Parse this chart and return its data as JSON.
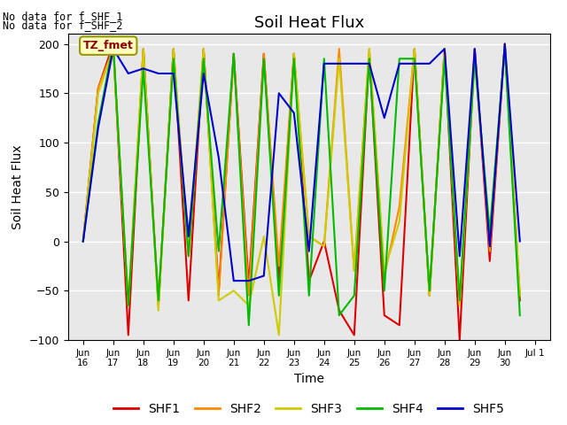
{
  "title": "Soil Heat Flux",
  "xlabel": "Time",
  "ylabel": "Soil Heat Flux",
  "ylim": [
    -100,
    210
  ],
  "yticks": [
    -100,
    -50,
    0,
    50,
    100,
    150,
    200
  ],
  "background_color": "#e8e8e8",
  "figure_color": "#ffffff",
  "annotation_text1": "No data for f_SHF_1",
  "annotation_text2": "No data for f_SHF_2",
  "tz_label": "TZ_fmet",
  "series_names": [
    "SHF1",
    "SHF2",
    "SHF3",
    "SHF4",
    "SHF5"
  ],
  "series_colors": [
    "#dd0000",
    "#ff8800",
    "#cccc00",
    "#00bb00",
    "#0000cc"
  ],
  "start_day": 16,
  "end_day": 31,
  "n_days": 15,
  "SHF1_times": [
    16.0,
    16.5,
    17.0,
    17.5,
    18.0,
    18.5,
    19.0,
    19.5,
    20.0,
    20.5,
    21.0,
    21.5,
    22.0,
    22.5,
    23.0,
    23.5,
    24.0,
    24.5,
    25.0,
    25.5,
    26.0,
    26.5,
    27.0,
    27.5,
    28.0,
    28.5,
    29.0,
    29.5,
    30.0,
    30.5
  ],
  "SHF1_vals": [
    0,
    155,
    200,
    -95,
    195,
    -65,
    195,
    -60,
    195,
    -50,
    190,
    -45,
    190,
    -40,
    190,
    -40,
    0,
    -70,
    -95,
    190,
    -75,
    -85,
    195,
    -55,
    195,
    -100,
    195,
    -20,
    200,
    -60
  ],
  "SHF2_times": [
    16.0,
    16.5,
    17.0,
    17.5,
    18.0,
    18.5,
    19.0,
    19.5,
    20.0,
    20.5,
    21.0,
    21.5,
    22.0,
    22.5,
    23.0,
    23.5,
    24.0,
    24.5,
    25.0,
    25.5,
    26.0,
    26.5,
    27.0,
    27.5,
    28.0,
    28.5,
    29.0,
    29.5,
    30.0,
    30.5
  ],
  "SHF2_vals": [
    0,
    155,
    195,
    -65,
    195,
    -65,
    195,
    -15,
    195,
    -55,
    190,
    -55,
    190,
    -25,
    190,
    5,
    -5,
    195,
    -30,
    195,
    -35,
    35,
    195,
    -55,
    195,
    -65,
    195,
    -10,
    200,
    -55
  ],
  "SHF3_times": [
    16.0,
    16.5,
    17.0,
    17.5,
    18.0,
    18.5,
    19.0,
    19.5,
    20.0,
    20.5,
    21.0,
    21.5,
    22.0,
    22.5,
    23.0,
    23.5,
    24.0,
    24.5,
    25.0,
    25.5,
    26.0,
    26.5,
    27.0,
    27.5,
    28.0,
    28.5,
    29.0,
    29.5,
    30.0,
    30.5
  ],
  "SHF3_vals": [
    0,
    150,
    195,
    -65,
    195,
    -70,
    195,
    -15,
    195,
    -60,
    -50,
    -65,
    5,
    -95,
    190,
    5,
    -5,
    185,
    -30,
    195,
    -30,
    20,
    195,
    -55,
    195,
    -65,
    185,
    5,
    200,
    -55
  ],
  "SHF4_times": [
    16.0,
    16.5,
    17.0,
    17.5,
    18.0,
    18.5,
    19.0,
    19.5,
    20.0,
    20.5,
    21.0,
    21.5,
    22.0,
    22.5,
    23.0,
    23.5,
    24.0,
    24.5,
    25.0,
    25.5,
    26.0,
    26.5,
    27.0,
    27.5,
    28.0,
    28.5,
    29.0,
    29.5,
    30.0,
    30.5
  ],
  "SHF4_vals": [
    0,
    120,
    200,
    -65,
    175,
    -60,
    185,
    -15,
    185,
    -10,
    190,
    -85,
    185,
    -55,
    185,
    -55,
    185,
    -75,
    -55,
    185,
    -50,
    185,
    185,
    -50,
    185,
    -60,
    185,
    10,
    195,
    -75
  ],
  "SHF5_times": [
    16.0,
    16.5,
    17.0,
    17.5,
    18.0,
    18.5,
    19.0,
    19.5,
    20.0,
    20.5,
    21.0,
    21.5,
    22.0,
    22.5,
    23.0,
    23.5,
    24.0,
    24.5,
    25.0,
    25.5,
    26.0,
    26.5,
    27.0,
    27.5,
    28.0,
    28.5,
    29.0,
    29.5,
    30.0,
    30.5
  ],
  "SHF5_vals": [
    0,
    115,
    195,
    170,
    175,
    170,
    170,
    5,
    170,
    85,
    -40,
    -40,
    -35,
    150,
    130,
    -10,
    180,
    180,
    180,
    180,
    125,
    180,
    180,
    180,
    195,
    -15,
    195,
    -5,
    200,
    0
  ]
}
